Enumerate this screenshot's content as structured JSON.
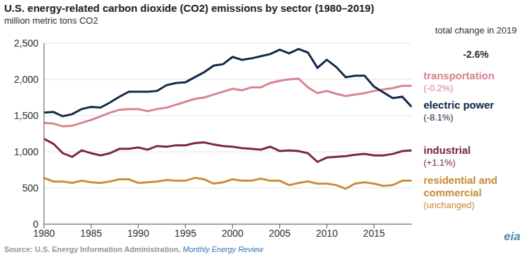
{
  "chart_data": {
    "type": "line",
    "title": "U.S. energy-related carbon dioxide (CO2) emissions by sector (1980–2019)",
    "subtitle": "million metric tons CO2",
    "x": [
      1980,
      1981,
      1982,
      1983,
      1984,
      1985,
      1986,
      1987,
      1988,
      1989,
      1990,
      1991,
      1992,
      1993,
      1994,
      1995,
      1996,
      1997,
      1998,
      1999,
      2000,
      2001,
      2002,
      2003,
      2004,
      2005,
      2006,
      2007,
      2008,
      2009,
      2010,
      2011,
      2012,
      2013,
      2014,
      2015,
      2016,
      2017,
      2018,
      2019
    ],
    "xlim": [
      1980,
      2019
    ],
    "xticks": [
      1980,
      1985,
      1990,
      1995,
      2000,
      2005,
      2010,
      2015
    ],
    "ylim": [
      0,
      2500
    ],
    "yticks": [
      0,
      500,
      {
        "value": 1000,
        "label": "1,000"
      },
      {
        "value": 1500,
        "label": "1,500"
      },
      {
        "value": 2000,
        "label": "2,000"
      },
      {
        "value": 2500,
        "label": "2,500"
      }
    ],
    "grid": true,
    "series": [
      {
        "name": "transportation",
        "annotation": "(-0.2%)",
        "color": "#d9848f",
        "values": [
          1400,
          1390,
          1350,
          1360,
          1400,
          1440,
          1490,
          1540,
          1580,
          1590,
          1590,
          1560,
          1590,
          1610,
          1650,
          1690,
          1730,
          1750,
          1790,
          1830,
          1870,
          1850,
          1890,
          1890,
          1950,
          1980,
          2000,
          2010,
          1890,
          1810,
          1840,
          1800,
          1770,
          1790,
          1810,
          1840,
          1860,
          1880,
          1910,
          1910
        ]
      },
      {
        "name": "electric power",
        "annotation": "(-8.1%)",
        "color": "#0f2a4a",
        "values": [
          1540,
          1550,
          1490,
          1520,
          1590,
          1620,
          1610,
          1680,
          1760,
          1830,
          1830,
          1830,
          1840,
          1920,
          1950,
          1960,
          2030,
          2100,
          2190,
          2210,
          2310,
          2270,
          2290,
          2320,
          2350,
          2410,
          2360,
          2420,
          2370,
          2160,
          2270,
          2170,
          2030,
          2050,
          2050,
          1900,
          1820,
          1740,
          1760,
          1620
        ]
      },
      {
        "name": "industrial",
        "annotation": "(+1.1%)",
        "color": "#7b2a3a",
        "values": [
          1180,
          1110,
          980,
          930,
          1020,
          980,
          950,
          980,
          1040,
          1040,
          1060,
          1030,
          1080,
          1070,
          1090,
          1090,
          1120,
          1130,
          1100,
          1080,
          1070,
          1050,
          1040,
          1030,
          1070,
          1010,
          1020,
          1010,
          980,
          860,
          920,
          930,
          940,
          960,
          970,
          950,
          950,
          970,
          1010,
          1020
        ]
      },
      {
        "name": "residential and commercial",
        "annotation": "(unchanged)",
        "color": "#c98f3a",
        "values": [
          640,
          590,
          590,
          570,
          600,
          580,
          570,
          590,
          620,
          620,
          570,
          580,
          590,
          610,
          600,
          600,
          640,
          620,
          560,
          580,
          620,
          600,
          600,
          630,
          600,
          600,
          540,
          570,
          590,
          560,
          560,
          540,
          490,
          560,
          580,
          560,
          530,
          540,
          600,
          600
        ]
      }
    ],
    "total_change_label": "total change in 2019",
    "total_change": "-2.6%",
    "source": "Source: U.S. Energy Information Administration, ",
    "source_link": "Monthly Energy Review",
    "logo": "eia"
  }
}
